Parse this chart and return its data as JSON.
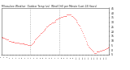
{
  "title": "Milwaukee Weather  Outdoor Temp (vs)  Wind Chill per Minute (Last 24 Hours)",
  "background_color": "#ffffff",
  "plot_bg_color": "#ffffff",
  "line_color": "#ff0000",
  "vline_color": "#888888",
  "ylim": [
    -5,
    45
  ],
  "yticks": [
    45,
    40,
    35,
    30,
    25,
    20,
    15,
    10,
    5,
    0,
    -5
  ],
  "ytick_labels": [
    "45",
    "40",
    "35",
    "30",
    "25",
    "20",
    "15",
    "10",
    "5",
    "0",
    "-5"
  ],
  "vline_positions": [
    0.27,
    0.54
  ],
  "x_data": [
    0,
    1,
    2,
    3,
    4,
    5,
    6,
    7,
    8,
    9,
    10,
    11,
    12,
    13,
    14,
    15,
    16,
    17,
    18,
    19,
    20,
    21,
    22,
    23,
    24,
    25,
    26,
    27,
    28,
    29,
    30,
    31,
    32,
    33,
    34,
    35,
    36,
    37,
    38,
    39,
    40,
    41,
    42,
    43,
    44,
    45,
    46,
    47,
    48,
    49,
    50,
    51,
    52,
    53,
    54,
    55,
    56,
    57,
    58,
    59,
    60,
    61,
    62,
    63,
    64,
    65,
    66,
    67,
    68,
    69,
    70,
    71,
    72,
    73,
    74,
    75,
    76,
    77,
    78,
    79,
    80,
    81,
    82,
    83,
    84,
    85,
    86,
    87,
    88,
    89,
    90,
    91,
    92,
    93,
    94,
    95,
    96,
    97,
    98,
    99,
    100,
    101,
    102,
    103,
    104,
    105,
    106,
    107,
    108,
    109,
    110,
    111,
    112,
    113,
    114,
    115,
    116,
    117,
    118,
    119,
    120,
    121,
    122,
    123,
    124,
    125,
    126,
    127,
    128,
    129,
    130,
    131,
    132,
    133,
    134,
    135,
    136,
    137,
    138,
    139,
    140,
    141,
    142,
    143
  ],
  "y_data": [
    14,
    14,
    13,
    13,
    13,
    12,
    12,
    11,
    11,
    11,
    10,
    10,
    10,
    9,
    9,
    9,
    9,
    9,
    8,
    8,
    8,
    8,
    8,
    8,
    7,
    7,
    7,
    7,
    7,
    7,
    7,
    6,
    6,
    6,
    6,
    5,
    5,
    5,
    5,
    5,
    6,
    7,
    8,
    9,
    10,
    11,
    12,
    13,
    14,
    15,
    16,
    17,
    18,
    18,
    19,
    20,
    21,
    22,
    23,
    24,
    25,
    25,
    26,
    27,
    28,
    28,
    29,
    30,
    30,
    30,
    31,
    31,
    32,
    33,
    33,
    34,
    34,
    35,
    35,
    36,
    36,
    36,
    37,
    37,
    37,
    37,
    37,
    38,
    38,
    38,
    38,
    38,
    38,
    37,
    37,
    36,
    35,
    34,
    33,
    32,
    31,
    30,
    28,
    27,
    26,
    24,
    22,
    20,
    18,
    16,
    14,
    12,
    10,
    8,
    6,
    5,
    4,
    3,
    2,
    1,
    0,
    -1,
    -2,
    -3,
    -3,
    -3,
    -2,
    -2,
    -2,
    -2,
    -2,
    -1,
    -1,
    -1,
    0,
    0,
    0,
    1,
    1,
    2,
    2,
    3,
    3,
    4
  ]
}
